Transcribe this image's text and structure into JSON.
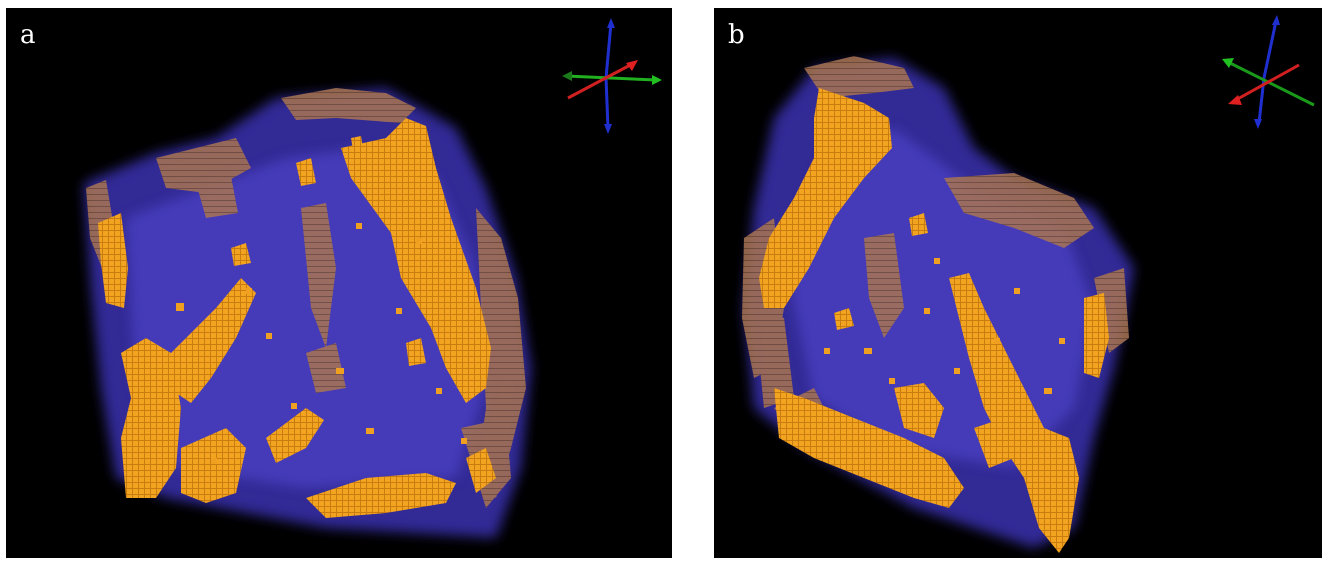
{
  "panels": [
    {
      "label": "a",
      "name": "panel-a"
    },
    {
      "label": "b",
      "name": "panel-b"
    }
  ],
  "colors": {
    "background": "#000000",
    "matrix": "#4a3fc8",
    "orange_phase": "#f0a020",
    "brown_phase": "#a0714f",
    "axis_x": "#e02020",
    "axis_y": "#20c020",
    "axis_z": "#2030d0"
  },
  "icons": [
    "orientation-axes-icon"
  ]
}
